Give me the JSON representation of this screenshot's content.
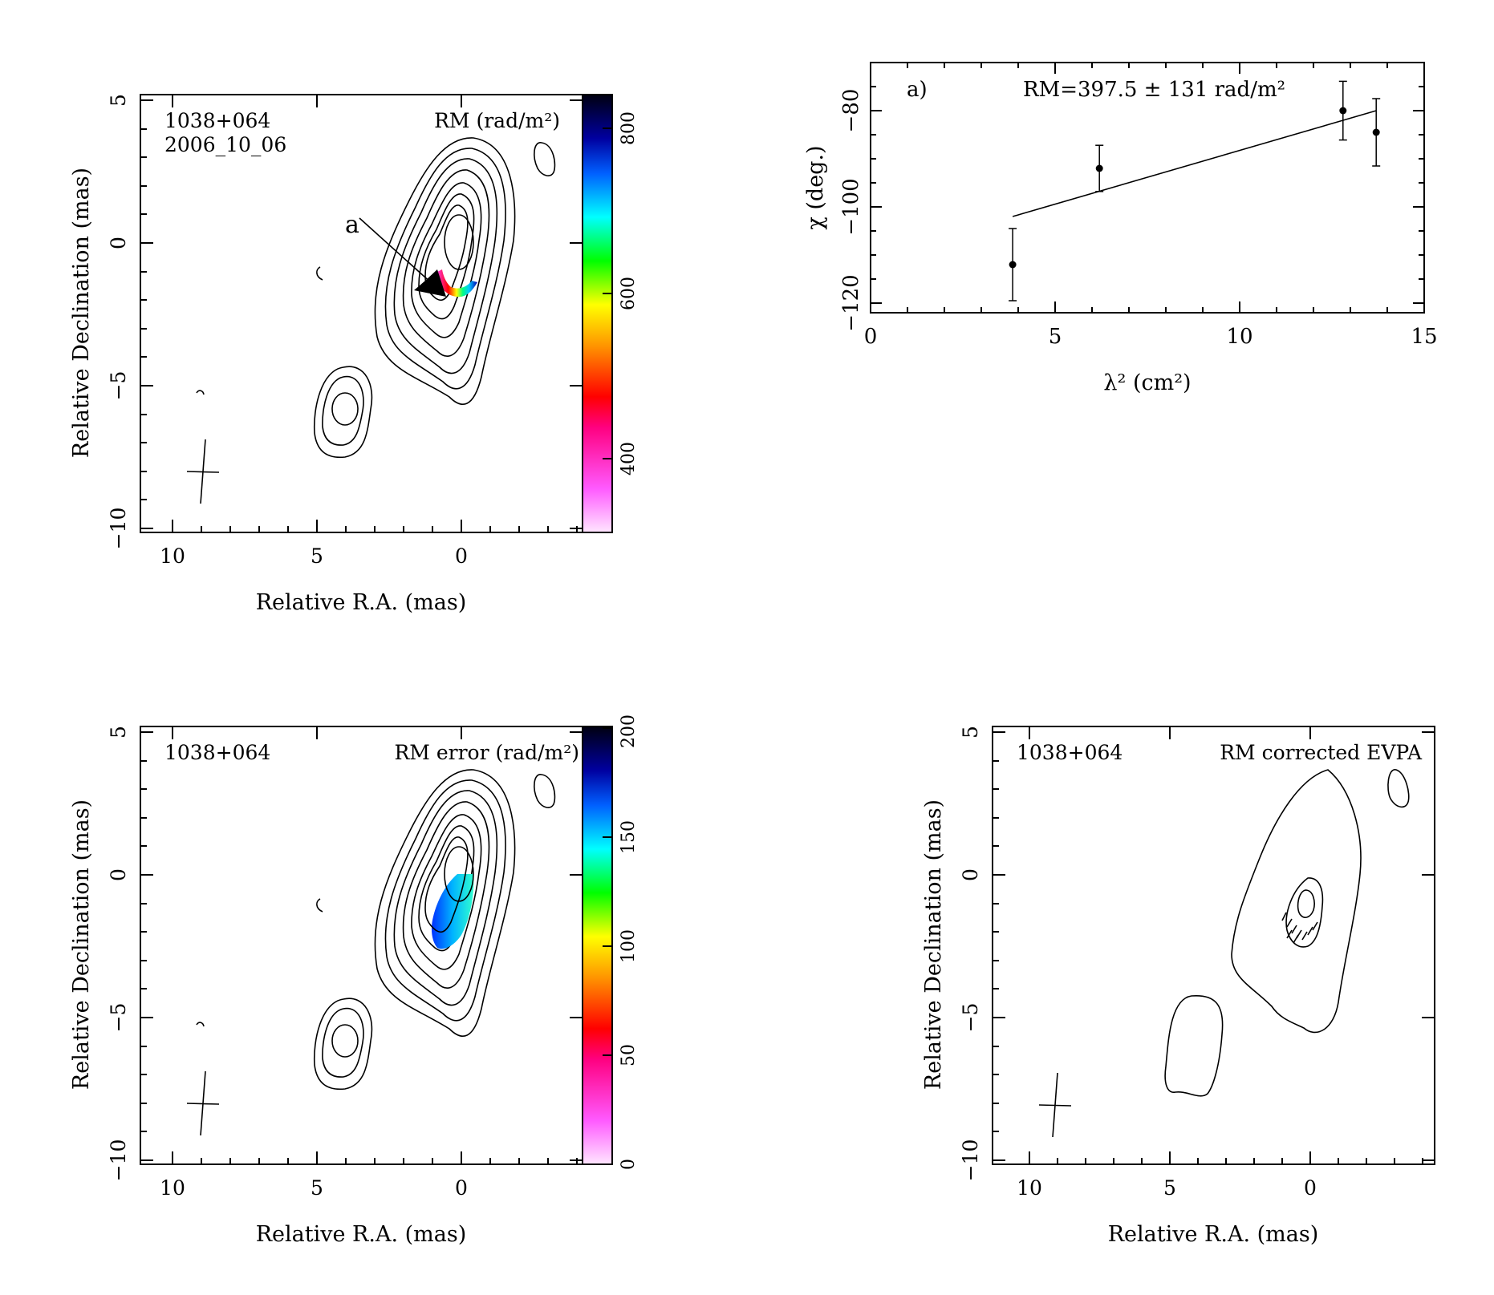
{
  "panels": {
    "rm_map": {
      "source": "1038+064",
      "date": "2006_10_06",
      "label": "RM (rad/m²)",
      "xlabel": "Relative R.A. (mas)",
      "ylabel": "Relative Declination (mas)",
      "annotation": "a",
      "colorbar_ticks": [
        "400",
        "600",
        "800"
      ]
    },
    "rm_error_map": {
      "source": "1038+064",
      "label": "RM error (rad/m²)",
      "xlabel": "Relative R.A. (mas)",
      "ylabel": "Relative Declination (mas)",
      "colorbar_ticks": [
        "0",
        "50",
        "100",
        "150",
        "200"
      ]
    },
    "evpa_map": {
      "source": "1038+064",
      "label": "RM corrected EVPA",
      "xlabel": "Relative R.A. (mas)",
      "ylabel": "Relative Declination (mas)"
    },
    "fit_plot": {
      "panel_label": "a)",
      "fit_label": "RM=397.5 ± 131 rad/m²",
      "xlabel": "λ² (cm²)",
      "ylabel": "χ (deg.)"
    }
  },
  "map_x_ticks": [
    "10",
    "5",
    "0"
  ],
  "map_y_ticks": [
    "5",
    "0",
    "−5",
    "−10"
  ],
  "chart_data": [
    {
      "type": "scatter",
      "x": [
        3.85,
        6.2,
        12.8,
        13.7
      ],
      "y": [
        -112,
        -92,
        -80,
        -84.5
      ],
      "yerr": [
        7.5,
        4.8,
        6.1,
        7.0
      ],
      "fit_line": {
        "x": [
          3.85,
          13.7
        ],
        "y": [
          -102,
          -80
        ]
      },
      "xlim": [
        0,
        15
      ],
      "ylim": [
        -122,
        -70
      ],
      "x_ticks": [
        "0",
        "5",
        "10",
        "15"
      ],
      "y_ticks": [
        "−120",
        "−100",
        "−80"
      ],
      "xlabel": "λ² (cm²)",
      "ylabel": "χ (deg.)"
    }
  ]
}
